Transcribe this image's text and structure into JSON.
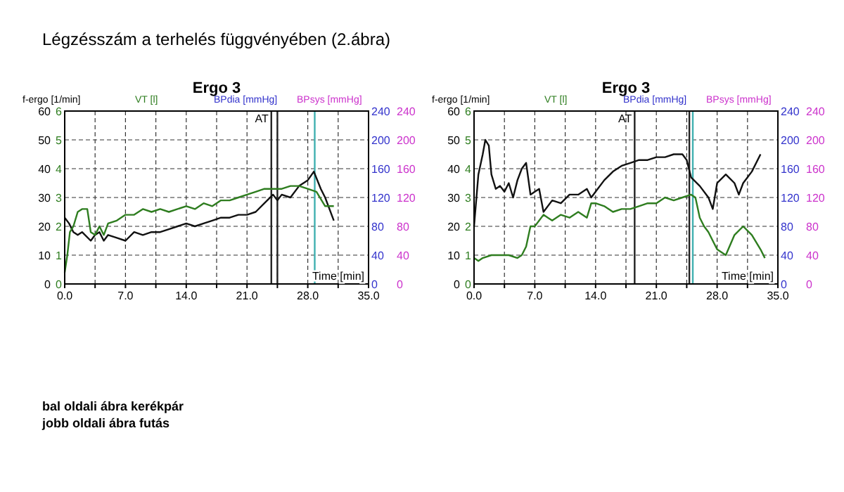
{
  "chart_data": [
    {
      "type": "line",
      "title": "Ergo 3",
      "xlabel": "Time [min]",
      "ylabel": "f-ergo [1/min]",
      "y2label": "VT [l]",
      "y3label": "BPdia [mmHg]",
      "annotations": [
        "BPsys [mmHg]",
        "0",
        "40",
        "80",
        "120",
        "160",
        "200",
        "240"
      ],
      "xlim": [
        0,
        35
      ],
      "xticks": [
        {
          "value": 0,
          "label": "0.0"
        },
        {
          "value": 3.5,
          "label": null
        },
        {
          "value": 7,
          "label": "7.0"
        },
        {
          "value": 10.5,
          "label": null
        },
        {
          "value": 14,
          "label": "14.0"
        },
        {
          "value": 17.5,
          "label": null
        },
        {
          "value": 21,
          "label": "21.0"
        },
        {
          "value": 24.5,
          "label": null
        },
        {
          "value": 28,
          "label": "28.0"
        },
        {
          "value": 31.5,
          "label": null
        },
        {
          "value": 35,
          "label": "35.0"
        }
      ],
      "ylim": [
        0,
        60
      ],
      "yticks": [
        0,
        10,
        20,
        30,
        40,
        50,
        60
      ],
      "y2lim": [
        0,
        6
      ],
      "y2ticks": [
        0,
        1,
        2,
        3,
        4,
        5,
        6
      ],
      "y3lim": [
        0,
        240
      ],
      "y3ticks": [
        0,
        40,
        80,
        120,
        160,
        200,
        240
      ],
      "grid": true,
      "ref_lines": [
        {
          "axis": "x",
          "value": 23.8,
          "label": "AT",
          "color": "#222222"
        },
        {
          "axis": "x",
          "value": 24.5,
          "label": null,
          "color": "#222222"
        },
        {
          "axis": "x",
          "value": 28.8,
          "label": null,
          "color": "#40b0b0"
        }
      ],
      "series": [
        {
          "color": "#111111",
          "x": [
            0,
            0.5,
            1,
            1.5,
            2,
            3,
            3.5,
            4,
            4.5,
            5,
            6,
            7,
            8,
            9,
            10,
            11,
            12,
            13,
            14,
            15,
            16,
            17,
            18,
            19,
            20,
            21,
            22,
            23,
            24,
            24.5,
            25,
            26,
            27,
            28,
            28.7,
            29.5,
            30,
            31
          ],
          "values": [
            23,
            21,
            18,
            17,
            18,
            15,
            17,
            18,
            15,
            17,
            16,
            15,
            18,
            17,
            18,
            18,
            19,
            20,
            21,
            20,
            21,
            22,
            23,
            23,
            24,
            24,
            25,
            28,
            31,
            29,
            31,
            30,
            34,
            36,
            39,
            33,
            30,
            22
          ]
        },
        {
          "color": "#2e7d1f",
          "axis": "y2",
          "x": [
            0,
            0.3,
            0.6,
            1,
            1.5,
            2,
            2.6,
            3,
            3.5,
            4,
            4.5,
            5,
            6,
            7,
            8,
            9,
            10,
            11,
            12,
            13,
            14,
            15,
            16,
            17,
            18,
            19,
            20,
            21,
            22,
            23,
            24,
            25,
            26,
            27,
            28,
            29,
            30,
            31
          ],
          "values": [
            0.4,
            1.0,
            1.8,
            2.0,
            2.5,
            2.6,
            2.6,
            1.8,
            1.7,
            2.0,
            1.7,
            2.1,
            2.2,
            2.4,
            2.4,
            2.6,
            2.5,
            2.6,
            2.5,
            2.6,
            2.7,
            2.6,
            2.8,
            2.7,
            2.9,
            2.9,
            3.0,
            3.1,
            3.2,
            3.3,
            3.3,
            3.3,
            3.4,
            3.4,
            3.3,
            3.2,
            2.7,
            2.7
          ]
        }
      ]
    },
    {
      "type": "line",
      "title": "Ergo 3",
      "xlabel": "Time [min]",
      "ylabel": "f-ergo [1/min]",
      "y2label": "VT [l]",
      "y3label": "BPdia [mmHg]",
      "annotations": [
        "BPsys [mmHg]",
        "0",
        "40",
        "80",
        "120",
        "160",
        "200",
        "240"
      ],
      "xlim": [
        0,
        35
      ],
      "xticks": [
        {
          "value": 0,
          "label": "0.0"
        },
        {
          "value": 3.5,
          "label": null
        },
        {
          "value": 7,
          "label": "7.0"
        },
        {
          "value": 10.5,
          "label": null
        },
        {
          "value": 14,
          "label": "14.0"
        },
        {
          "value": 17.5,
          "label": null
        },
        {
          "value": 21,
          "label": "21.0"
        },
        {
          "value": 24.5,
          "label": null
        },
        {
          "value": 28,
          "label": "28.0"
        },
        {
          "value": 31.5,
          "label": null
        },
        {
          "value": 35,
          "label": "35.0"
        }
      ],
      "ylim": [
        0,
        60
      ],
      "yticks": [
        0,
        10,
        20,
        30,
        40,
        50,
        60
      ],
      "y2lim": [
        0,
        6
      ],
      "y2ticks": [
        0,
        1,
        2,
        3,
        4,
        5,
        6
      ],
      "y3lim": [
        0,
        240
      ],
      "y3ticks": [
        0,
        40,
        80,
        120,
        160,
        200,
        240
      ],
      "grid": true,
      "ref_lines": [
        {
          "axis": "x",
          "value": 18.5,
          "label": "AT",
          "color": "#222222"
        },
        {
          "axis": "x",
          "value": 24.8,
          "label": null,
          "color": "#222222"
        },
        {
          "axis": "x",
          "value": 25.2,
          "label": null,
          "color": "#40b0b0"
        }
      ],
      "series": [
        {
          "color": "#111111",
          "x": [
            0,
            0.5,
            1,
            1.3,
            1.7,
            2,
            2.5,
            3,
            3.5,
            4,
            4.5,
            5,
            5.5,
            6,
            6.5,
            7,
            7.5,
            8,
            9,
            10,
            11,
            12,
            13,
            13.5,
            14,
            15,
            16,
            17,
            18,
            19,
            20,
            21,
            22,
            23,
            24,
            24.5,
            25,
            26,
            27,
            27.5,
            28,
            29,
            30,
            30.5,
            31,
            32,
            33
          ],
          "values": [
            20,
            38,
            45,
            50,
            48,
            38,
            33,
            34,
            32,
            35,
            30,
            36,
            40,
            42,
            31,
            32,
            33,
            25,
            29,
            28,
            31,
            31,
            33,
            30,
            32,
            36,
            39,
            41,
            42,
            43,
            43,
            44,
            44,
            45,
            45,
            43,
            37,
            34,
            30,
            26,
            35,
            38,
            35,
            31,
            35,
            39,
            45
          ]
        },
        {
          "color": "#2e7d1f",
          "axis": "y2",
          "x": [
            0,
            0.5,
            1,
            2,
            3,
            4,
            5,
            5.5,
            6,
            6.5,
            7,
            7.5,
            8,
            8.5,
            9,
            10,
            11,
            12,
            13,
            13.5,
            14,
            15,
            16,
            17,
            18,
            19,
            20,
            21,
            22,
            23,
            24,
            25,
            25.5,
            26,
            26.5,
            27,
            28,
            29,
            30,
            31,
            32,
            33,
            33.5
          ],
          "values": [
            0.9,
            0.8,
            0.9,
            1.0,
            1.0,
            1.0,
            0.9,
            1.0,
            1.3,
            2.0,
            2.0,
            2.2,
            2.4,
            2.3,
            2.2,
            2.4,
            2.3,
            2.5,
            2.3,
            2.8,
            2.8,
            2.7,
            2.5,
            2.6,
            2.6,
            2.7,
            2.8,
            2.8,
            3.0,
            2.9,
            3.0,
            3.1,
            3.0,
            2.3,
            2.0,
            1.8,
            1.2,
            1.0,
            1.7,
            2.0,
            1.7,
            1.2,
            0.9
          ]
        }
      ]
    },
    {
      "type": "other",
      "title": "Légzésszám a terhelés függvényében (2.ábra)",
      "annotations": [
        "bal oldali ábra kerékpár",
        "jobb oldali ábra futás"
      ]
    }
  ]
}
